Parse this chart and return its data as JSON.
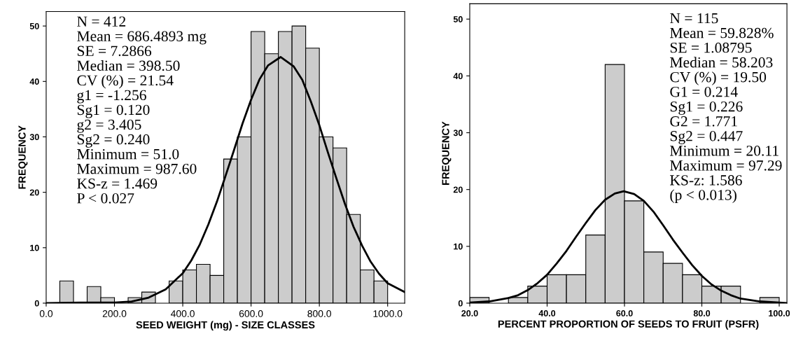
{
  "chart_data": [
    {
      "type": "histogram",
      "xlabel": "SEED WEIGHT (mg) - SIZE CLASSES",
      "ylabel": "FREQUENCY",
      "color": "#cccccc",
      "bins": [
        40,
        80,
        120,
        160,
        200,
        240,
        280,
        320,
        360,
        400,
        440,
        480,
        520,
        560,
        600,
        640,
        680,
        720,
        760,
        800,
        840,
        880,
        920,
        960,
        1000
      ],
      "values": [
        4,
        0,
        3,
        1,
        0,
        1,
        2,
        0,
        4,
        6,
        7,
        5,
        26,
        30,
        49,
        45,
        49,
        50,
        46,
        30,
        28,
        16,
        6,
        4
      ],
      "series": [
        {
          "type": "line",
          "color": "#000000",
          "x": [
            0,
            100,
            200,
            250,
            300,
            350,
            400,
            425,
            450,
            475,
            500,
            525,
            550,
            575,
            600,
            625,
            650,
            686.5,
            725,
            750,
            775,
            800,
            825,
            850,
            875,
            900,
            925,
            950,
            975,
            1000,
            1050
          ],
          "values": [
            0,
            0.1,
            0.1,
            0.3,
            1,
            2.5,
            5.4,
            7.7,
            10.6,
            14.2,
            18.3,
            22.9,
            27.6,
            32.4,
            36.7,
            40.4,
            42.9,
            44.4,
            42.7,
            40.3,
            36.4,
            32.1,
            27.2,
            22.5,
            17.9,
            13.8,
            10.4,
            7.5,
            5.3,
            3.6,
            2
          ]
        }
      ],
      "xlim": [
        0,
        1050
      ],
      "ylim": [
        0,
        52.6
      ],
      "xticks": [
        {
          "value": 0,
          "label": "0.0"
        },
        {
          "value": 200,
          "label": "200.0"
        },
        {
          "value": 400,
          "label": "400.0"
        },
        {
          "value": 600,
          "label": "600.0"
        },
        {
          "value": 800,
          "label": "800.0"
        },
        {
          "value": 1000,
          "label": "1000.0"
        }
      ],
      "yticks": [
        0,
        10,
        20,
        30,
        40,
        50
      ],
      "grid": false,
      "legend": false,
      "annotations": [
        "N = 412",
        "Mean = 686.4893 mg",
        "SE = 7.2866",
        "Median = 398.50",
        "CV (%) = 21.54",
        "g1 = -1.256",
        "Sg1 = 0.120",
        "g2 = 3.405",
        "Sg2 = 0.240",
        "Minimum = 51.0",
        "Maximum = 987.60",
        "KS-z = 1.469",
        "P < 0.027"
      ]
    },
    {
      "type": "histogram",
      "xlabel": "PERCENT PROPORTION OF SEEDS TO FRUIT (PSFR)",
      "ylabel": "FREQUENCY",
      "color": "#cccccc",
      "bins": [
        20,
        25,
        30,
        35,
        40,
        45,
        50,
        55,
        60,
        65,
        70,
        75,
        80,
        85,
        90,
        95,
        100
      ],
      "values": [
        1,
        0,
        1,
        3,
        5,
        5,
        12,
        42,
        18,
        9,
        7,
        5,
        3,
        3,
        0,
        1
      ],
      "series": [
        {
          "type": "line",
          "color": "#000000",
          "x": [
            20,
            25,
            30,
            32.5,
            35,
            37.5,
            40,
            42.5,
            45,
            47.5,
            50,
            52.5,
            55,
            57.5,
            59.8,
            62.5,
            65,
            67.5,
            70,
            72.5,
            75,
            77.5,
            80,
            82.5,
            85,
            87.5,
            90,
            95,
            102
          ],
          "values": [
            0.1,
            0.3,
            0.9,
            1.4,
            2.3,
            3.5,
            5,
            7,
            9.2,
            11.7,
            14.1,
            16.4,
            18.2,
            19.3,
            19.7,
            19.2,
            18,
            16.1,
            13.7,
            11.2,
            8.9,
            6.7,
            4.8,
            3.3,
            2.2,
            1.4,
            0.8,
            0.3,
            0
          ]
        }
      ],
      "xlim": [
        20,
        102
      ],
      "ylim": [
        0,
        52.7
      ],
      "xticks": [
        {
          "value": 20,
          "label": "20.0"
        },
        {
          "value": 40,
          "label": "40.0"
        },
        {
          "value": 60,
          "label": "60.0"
        },
        {
          "value": 80,
          "label": "80.0"
        },
        {
          "value": 100,
          "label": "100.0"
        }
      ],
      "yticks": [
        0,
        10,
        20,
        30,
        40,
        50
      ],
      "grid": false,
      "legend": false,
      "annotations": [
        "N = 115",
        "Mean = 59.828%",
        "SE = 1.08795",
        "Median = 58.203",
        "CV (%) = 19.50",
        "G1 = 0.214",
        "Sg1 = 0.226",
        "G2 = 1.771",
        "Sg2 = 0.447",
        "Minimum = 20.11",
        "Maximum = 97.29",
        "KS-z: 1.586",
        "(p < 0.013)"
      ]
    }
  ]
}
